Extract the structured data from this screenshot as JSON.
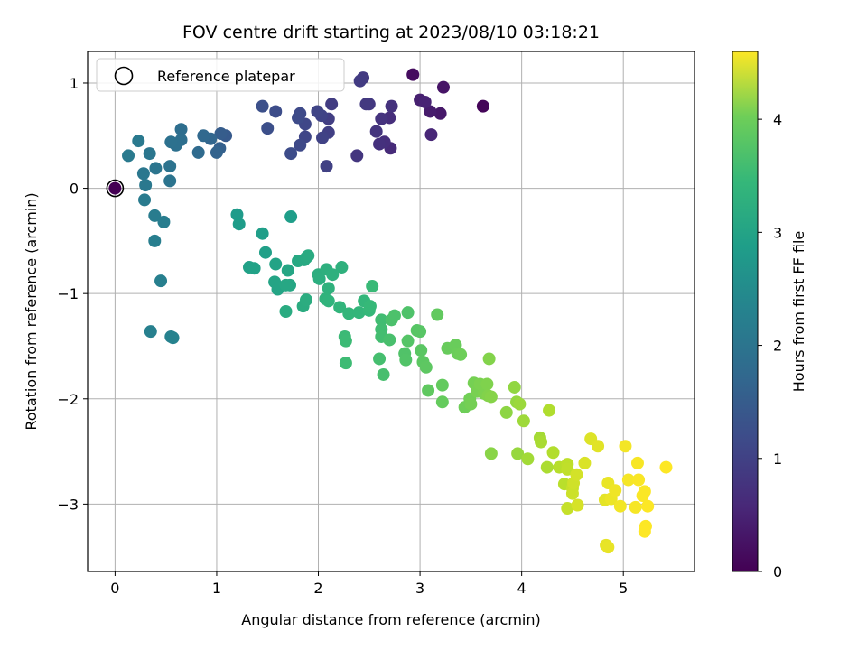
{
  "chart_data": {
    "type": "scatter",
    "title": "FOV centre drift starting at 2023/08/10 03:18:21",
    "xlabel": "Angular distance from reference (arcmin)",
    "ylabel": "Rotation from reference (arcmin)",
    "xlim": [
      -0.27,
      5.7
    ],
    "ylim": [
      -3.64,
      1.3
    ],
    "x_ticks": [
      0,
      1,
      2,
      3,
      4,
      5
    ],
    "y_ticks": [
      -3,
      -2,
      -1,
      0,
      1
    ],
    "grid": true,
    "legend": {
      "position": "top-left",
      "entries": [
        "Reference platepar"
      ]
    },
    "reference_point": {
      "x": 0,
      "y": 0
    },
    "colorbar": {
      "label": "Hours from first FF file",
      "colormap": "viridis",
      "range": [
        0,
        4.6
      ],
      "ticks": [
        0,
        1,
        2,
        3,
        4
      ]
    },
    "points": [
      {
        "x": 3.62,
        "y": 0.78,
        "c": 0.05
      },
      {
        "x": 2.93,
        "y": 1.08,
        "c": 0.15
      },
      {
        "x": 3.23,
        "y": 0.96,
        "c": 0.25
      },
      {
        "x": 3.2,
        "y": 0.71,
        "c": 0.3
      },
      {
        "x": 3.1,
        "y": 0.73,
        "c": 0.35
      },
      {
        "x": 3.0,
        "y": 0.84,
        "c": 0.4
      },
      {
        "x": 3.05,
        "y": 0.82,
        "c": 0.45
      },
      {
        "x": 3.11,
        "y": 0.51,
        "c": 0.5
      },
      {
        "x": 2.71,
        "y": 0.38,
        "c": 0.55
      },
      {
        "x": 2.7,
        "y": 0.67,
        "c": 0.6
      },
      {
        "x": 2.65,
        "y": 0.44,
        "c": 0.62
      },
      {
        "x": 2.6,
        "y": 0.42,
        "c": 0.65
      },
      {
        "x": 2.72,
        "y": 0.78,
        "c": 0.66
      },
      {
        "x": 2.62,
        "y": 0.66,
        "c": 0.68
      },
      {
        "x": 2.57,
        "y": 0.54,
        "c": 0.7
      },
      {
        "x": 2.38,
        "y": 0.31,
        "c": 0.72
      },
      {
        "x": 2.5,
        "y": 0.8,
        "c": 0.75
      },
      {
        "x": 2.47,
        "y": 0.8,
        "c": 0.76
      },
      {
        "x": 2.44,
        "y": 1.05,
        "c": 0.78
      },
      {
        "x": 2.41,
        "y": 1.02,
        "c": 0.8
      },
      {
        "x": 2.13,
        "y": 0.8,
        "c": 0.82
      },
      {
        "x": 2.1,
        "y": 0.66,
        "c": 0.84
      },
      {
        "x": 2.1,
        "y": 0.53,
        "c": 0.86
      },
      {
        "x": 2.08,
        "y": 0.21,
        "c": 0.88
      },
      {
        "x": 2.04,
        "y": 0.48,
        "c": 0.9
      },
      {
        "x": 2.03,
        "y": 0.69,
        "c": 0.92
      },
      {
        "x": 1.99,
        "y": 0.73,
        "c": 0.94
      },
      {
        "x": 1.87,
        "y": 0.49,
        "c": 0.96
      },
      {
        "x": 1.87,
        "y": 0.61,
        "c": 0.98
      },
      {
        "x": 1.82,
        "y": 0.41,
        "c": 1.0
      },
      {
        "x": 1.82,
        "y": 0.71,
        "c": 1.02
      },
      {
        "x": 1.8,
        "y": 0.67,
        "c": 1.04
      },
      {
        "x": 1.73,
        "y": 0.33,
        "c": 1.06
      },
      {
        "x": 1.58,
        "y": 0.73,
        "c": 1.08
      },
      {
        "x": 1.5,
        "y": 0.57,
        "c": 1.1
      },
      {
        "x": 1.45,
        "y": 0.78,
        "c": 1.12
      },
      {
        "x": 1.09,
        "y": 0.5,
        "c": 1.3
      },
      {
        "x": 1.04,
        "y": 0.52,
        "c": 1.35
      },
      {
        "x": 1.03,
        "y": 0.38,
        "c": 1.4
      },
      {
        "x": 1.0,
        "y": 0.34,
        "c": 1.45
      },
      {
        "x": 0.94,
        "y": 0.47,
        "c": 1.5
      },
      {
        "x": 0.87,
        "y": 0.5,
        "c": 1.55
      },
      {
        "x": 0.82,
        "y": 0.34,
        "c": 1.6
      },
      {
        "x": 0.65,
        "y": 0.56,
        "c": 1.65
      },
      {
        "x": 0.65,
        "y": 0.46,
        "c": 1.68
      },
      {
        "x": 0.6,
        "y": 0.41,
        "c": 1.7
      },
      {
        "x": 0.55,
        "y": 0.44,
        "c": 1.72
      },
      {
        "x": 0.54,
        "y": 0.21,
        "c": 1.74
      },
      {
        "x": 0.54,
        "y": 0.07,
        "c": 1.76
      },
      {
        "x": 0.4,
        "y": 0.19,
        "c": 1.78
      },
      {
        "x": 0.34,
        "y": 0.33,
        "c": 1.8
      },
      {
        "x": 0.28,
        "y": 0.14,
        "c": 1.82
      },
      {
        "x": 0.3,
        "y": 0.03,
        "c": 1.84
      },
      {
        "x": 0.23,
        "y": 0.45,
        "c": 1.86
      },
      {
        "x": 0.13,
        "y": 0.31,
        "c": 1.88
      },
      {
        "x": 0.29,
        "y": -0.11,
        "c": 1.9
      },
      {
        "x": 0.39,
        "y": -0.26,
        "c": 1.92
      },
      {
        "x": 0.48,
        "y": -0.32,
        "c": 1.94
      },
      {
        "x": 0.39,
        "y": -0.5,
        "c": 1.96
      },
      {
        "x": 0.45,
        "y": -0.88,
        "c": 1.98
      },
      {
        "x": 0.35,
        "y": -1.36,
        "c": 2.0
      },
      {
        "x": 0.55,
        "y": -1.41,
        "c": 2.02
      },
      {
        "x": 0.57,
        "y": -1.42,
        "c": 2.04
      },
      {
        "x": 1.2,
        "y": -0.25,
        "c": 2.5
      },
      {
        "x": 1.22,
        "y": -0.34,
        "c": 2.52
      },
      {
        "x": 1.73,
        "y": -0.27,
        "c": 2.55
      },
      {
        "x": 1.45,
        "y": -0.43,
        "c": 2.57
      },
      {
        "x": 1.48,
        "y": -0.61,
        "c": 2.6
      },
      {
        "x": 1.32,
        "y": -0.75,
        "c": 2.62
      },
      {
        "x": 1.37,
        "y": -0.76,
        "c": 2.63
      },
      {
        "x": 1.58,
        "y": -0.72,
        "c": 2.65
      },
      {
        "x": 1.57,
        "y": -0.89,
        "c": 2.67
      },
      {
        "x": 1.6,
        "y": -0.96,
        "c": 2.68
      },
      {
        "x": 1.7,
        "y": -0.78,
        "c": 2.7
      },
      {
        "x": 1.72,
        "y": -0.92,
        "c": 2.72
      },
      {
        "x": 1.68,
        "y": -0.92,
        "c": 2.73
      },
      {
        "x": 1.8,
        "y": -0.69,
        "c": 2.75
      },
      {
        "x": 1.86,
        "y": -0.68,
        "c": 2.77
      },
      {
        "x": 1.88,
        "y": -0.66,
        "c": 2.78
      },
      {
        "x": 1.9,
        "y": -0.64,
        "c": 2.8
      },
      {
        "x": 1.68,
        "y": -1.17,
        "c": 2.82
      },
      {
        "x": 1.85,
        "y": -1.12,
        "c": 2.83
      },
      {
        "x": 1.88,
        "y": -1.06,
        "c": 2.85
      },
      {
        "x": 2.0,
        "y": -0.82,
        "c": 2.87
      },
      {
        "x": 2.01,
        "y": -0.86,
        "c": 2.88
      },
      {
        "x": 2.08,
        "y": -0.77,
        "c": 2.9
      },
      {
        "x": 2.14,
        "y": -0.82,
        "c": 2.92
      },
      {
        "x": 2.23,
        "y": -0.75,
        "c": 2.93
      },
      {
        "x": 2.1,
        "y": -0.95,
        "c": 2.95
      },
      {
        "x": 2.07,
        "y": -1.05,
        "c": 2.97
      },
      {
        "x": 2.1,
        "y": -1.07,
        "c": 2.98
      },
      {
        "x": 2.21,
        "y": -1.13,
        "c": 3.0
      },
      {
        "x": 2.3,
        "y": -1.19,
        "c": 3.02
      },
      {
        "x": 2.4,
        "y": -1.18,
        "c": 3.03
      },
      {
        "x": 2.45,
        "y": -1.07,
        "c": 3.05
      },
      {
        "x": 2.5,
        "y": -1.16,
        "c": 3.07
      },
      {
        "x": 2.51,
        "y": -1.12,
        "c": 3.08
      },
      {
        "x": 2.53,
        "y": -0.93,
        "c": 3.1
      },
      {
        "x": 2.26,
        "y": -1.41,
        "c": 3.12
      },
      {
        "x": 2.27,
        "y": -1.45,
        "c": 3.13
      },
      {
        "x": 2.27,
        "y": -1.66,
        "c": 3.15
      },
      {
        "x": 2.62,
        "y": -1.25,
        "c": 3.17
      },
      {
        "x": 2.62,
        "y": -1.34,
        "c": 3.18
      },
      {
        "x": 2.62,
        "y": -1.41,
        "c": 3.2
      },
      {
        "x": 2.6,
        "y": -1.62,
        "c": 3.22
      },
      {
        "x": 2.64,
        "y": -1.77,
        "c": 3.23
      },
      {
        "x": 2.7,
        "y": -1.44,
        "c": 3.25
      },
      {
        "x": 2.72,
        "y": -1.25,
        "c": 3.27
      },
      {
        "x": 2.75,
        "y": -1.21,
        "c": 3.28
      },
      {
        "x": 2.88,
        "y": -1.18,
        "c": 3.3
      },
      {
        "x": 2.85,
        "y": -1.57,
        "c": 3.32
      },
      {
        "x": 2.86,
        "y": -1.63,
        "c": 3.33
      },
      {
        "x": 2.88,
        "y": -1.45,
        "c": 3.35
      },
      {
        "x": 2.97,
        "y": -1.35,
        "c": 3.37
      },
      {
        "x": 3.0,
        "y": -1.36,
        "c": 3.38
      },
      {
        "x": 3.01,
        "y": -1.54,
        "c": 3.4
      },
      {
        "x": 3.03,
        "y": -1.65,
        "c": 3.42
      },
      {
        "x": 3.06,
        "y": -1.7,
        "c": 3.43
      },
      {
        "x": 3.08,
        "y": -1.92,
        "c": 3.45
      },
      {
        "x": 3.17,
        "y": -1.2,
        "c": 3.47
      },
      {
        "x": 3.22,
        "y": -1.87,
        "c": 3.48
      },
      {
        "x": 3.22,
        "y": -2.03,
        "c": 3.5
      },
      {
        "x": 3.27,
        "y": -1.52,
        "c": 3.52
      },
      {
        "x": 3.35,
        "y": -1.49,
        "c": 3.53
      },
      {
        "x": 3.37,
        "y": -1.57,
        "c": 3.55
      },
      {
        "x": 3.4,
        "y": -1.58,
        "c": 3.57
      },
      {
        "x": 3.44,
        "y": -2.08,
        "c": 3.58
      },
      {
        "x": 3.49,
        "y": -2.0,
        "c": 3.6
      },
      {
        "x": 3.5,
        "y": -2.05,
        "c": 3.62
      },
      {
        "x": 3.53,
        "y": -1.85,
        "c": 3.63
      },
      {
        "x": 3.56,
        "y": -1.93,
        "c": 3.65
      },
      {
        "x": 3.59,
        "y": -1.86,
        "c": 3.67
      },
      {
        "x": 3.63,
        "y": -1.95,
        "c": 3.68
      },
      {
        "x": 3.66,
        "y": -1.86,
        "c": 3.7
      },
      {
        "x": 3.67,
        "y": -1.97,
        "c": 3.72
      },
      {
        "x": 3.68,
        "y": -1.62,
        "c": 3.73
      },
      {
        "x": 3.7,
        "y": -1.98,
        "c": 3.75
      },
      {
        "x": 3.7,
        "y": -2.52,
        "c": 3.77
      },
      {
        "x": 3.85,
        "y": -2.13,
        "c": 3.8
      },
      {
        "x": 3.93,
        "y": -1.89,
        "c": 3.83
      },
      {
        "x": 3.95,
        "y": -2.03,
        "c": 3.85
      },
      {
        "x": 3.96,
        "y": -2.52,
        "c": 3.87
      },
      {
        "x": 3.98,
        "y": -2.05,
        "c": 3.9
      },
      {
        "x": 4.02,
        "y": -2.21,
        "c": 3.92
      },
      {
        "x": 4.06,
        "y": -2.57,
        "c": 3.95
      },
      {
        "x": 4.18,
        "y": -2.37,
        "c": 3.97
      },
      {
        "x": 4.19,
        "y": -2.41,
        "c": 4.0
      },
      {
        "x": 4.25,
        "y": -2.65,
        "c": 4.02
      },
      {
        "x": 4.27,
        "y": -2.11,
        "c": 4.05
      },
      {
        "x": 4.31,
        "y": -2.51,
        "c": 4.07
      },
      {
        "x": 4.37,
        "y": -2.65,
        "c": 4.1
      },
      {
        "x": 4.42,
        "y": -2.81,
        "c": 4.12
      },
      {
        "x": 4.45,
        "y": -2.62,
        "c": 4.15
      },
      {
        "x": 4.45,
        "y": -2.67,
        "c": 4.17
      },
      {
        "x": 4.45,
        "y": -3.04,
        "c": 4.2
      },
      {
        "x": 4.5,
        "y": -2.85,
        "c": 4.22
      },
      {
        "x": 4.5,
        "y": -2.9,
        "c": 4.25
      },
      {
        "x": 4.51,
        "y": -2.8,
        "c": 4.27
      },
      {
        "x": 4.54,
        "y": -2.72,
        "c": 4.3
      },
      {
        "x": 4.55,
        "y": -3.01,
        "c": 4.32
      },
      {
        "x": 4.62,
        "y": -2.61,
        "c": 4.35
      },
      {
        "x": 4.68,
        "y": -2.38,
        "c": 4.37
      },
      {
        "x": 4.75,
        "y": -2.45,
        "c": 4.4
      },
      {
        "x": 4.82,
        "y": -2.96,
        "c": 4.42
      },
      {
        "x": 4.83,
        "y": -3.39,
        "c": 4.44
      },
      {
        "x": 4.85,
        "y": -3.41,
        "c": 4.45
      },
      {
        "x": 4.85,
        "y": -2.8,
        "c": 4.46
      },
      {
        "x": 4.88,
        "y": -2.95,
        "c": 4.48
      },
      {
        "x": 4.92,
        "y": -2.87,
        "c": 4.5
      },
      {
        "x": 4.97,
        "y": -3.02,
        "c": 4.52
      },
      {
        "x": 5.02,
        "y": -2.45,
        "c": 4.53
      },
      {
        "x": 5.05,
        "y": -2.77,
        "c": 4.54
      },
      {
        "x": 5.12,
        "y": -3.03,
        "c": 4.55
      },
      {
        "x": 5.14,
        "y": -2.61,
        "c": 4.56
      },
      {
        "x": 5.15,
        "y": -2.77,
        "c": 4.57
      },
      {
        "x": 5.19,
        "y": -2.92,
        "c": 4.58
      },
      {
        "x": 5.21,
        "y": -2.88,
        "c": 4.58
      },
      {
        "x": 5.24,
        "y": -3.02,
        "c": 4.59
      },
      {
        "x": 5.22,
        "y": -3.21,
        "c": 4.59
      },
      {
        "x": 5.21,
        "y": -3.26,
        "c": 4.6
      },
      {
        "x": 5.42,
        "y": -2.65,
        "c": 4.6
      }
    ]
  }
}
